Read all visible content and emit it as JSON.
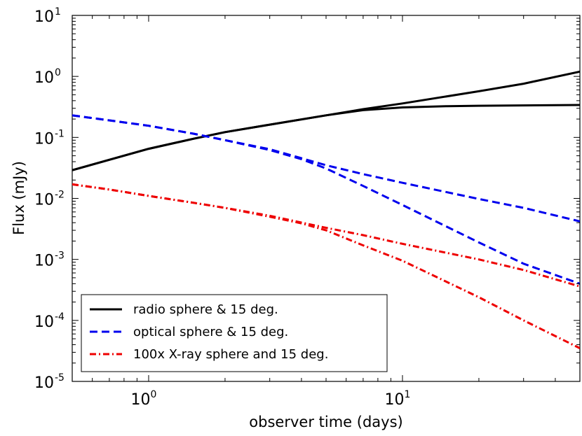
{
  "chart_data": {
    "type": "line",
    "xscale": "log",
    "yscale": "log",
    "xlabel": "observer time (days)",
    "ylabel": "Flux (mJy)",
    "xlim": [
      0.5,
      50
    ],
    "ylim": [
      1e-05,
      10
    ],
    "x_ticks": [
      {
        "value": 1,
        "base": "10",
        "exp": "0"
      },
      {
        "value": 10,
        "base": "10",
        "exp": "1"
      }
    ],
    "y_ticks": [
      {
        "value": 1e-05,
        "base": "10",
        "exp": "-5"
      },
      {
        "value": 0.0001,
        "base": "10",
        "exp": "-4"
      },
      {
        "value": 0.001,
        "base": "10",
        "exp": "-3"
      },
      {
        "value": 0.01,
        "base": "10",
        "exp": "-2"
      },
      {
        "value": 0.1,
        "base": "10",
        "exp": "-1"
      },
      {
        "value": 1,
        "base": "10",
        "exp": "0"
      },
      {
        "value": 10,
        "base": "10",
        "exp": "1"
      }
    ],
    "grid": false,
    "legend_position": "bottom-left",
    "legend": [
      {
        "label": "radio sphere & 15 deg.",
        "color": "#000000",
        "style": "solid"
      },
      {
        "label": "optical sphere & 15 deg.",
        "color": "#0000ee",
        "style": "dashed"
      },
      {
        "label": "100x X-ray sphere and 15 deg.",
        "color": "#ee0000",
        "style": "dashdot"
      }
    ],
    "series": [
      {
        "name": "radio sphere",
        "color": "#000000",
        "style": "solid",
        "x": [
          0.5,
          0.7,
          1,
          1.5,
          2,
          3,
          5,
          7,
          10,
          20,
          30,
          50
        ],
        "y": [
          0.029,
          0.043,
          0.065,
          0.095,
          0.122,
          0.162,
          0.23,
          0.29,
          0.36,
          0.57,
          0.76,
          1.2
        ]
      },
      {
        "name": "radio 15 deg.",
        "color": "#000000",
        "style": "solid",
        "x": [
          0.5,
          0.7,
          1,
          1.5,
          2,
          3,
          5,
          7,
          10,
          15,
          20,
          30,
          50
        ],
        "y": [
          0.029,
          0.043,
          0.065,
          0.095,
          0.122,
          0.162,
          0.23,
          0.28,
          0.31,
          0.325,
          0.33,
          0.335,
          0.34
        ]
      },
      {
        "name": "optical sphere",
        "color": "#0000ee",
        "style": "dashed",
        "x": [
          0.5,
          0.7,
          1,
          1.5,
          2,
          3,
          5,
          7,
          10,
          20,
          30,
          50
        ],
        "y": [
          0.23,
          0.19,
          0.155,
          0.115,
          0.09,
          0.064,
          0.035,
          0.025,
          0.018,
          0.0098,
          0.007,
          0.0042
        ]
      },
      {
        "name": "optical 15 deg.",
        "color": "#0000ee",
        "style": "dashed",
        "x": [
          0.5,
          0.7,
          1,
          1.5,
          2,
          3,
          4,
          5,
          7,
          10,
          20,
          30,
          50
        ],
        "y": [
          0.23,
          0.19,
          0.155,
          0.115,
          0.09,
          0.062,
          0.044,
          0.031,
          0.016,
          0.0078,
          0.0019,
          0.00085,
          0.0004
        ]
      },
      {
        "name": "100x X-ray sphere",
        "color": "#ee0000",
        "style": "dashdot",
        "x": [
          0.5,
          0.7,
          1,
          1.5,
          2,
          3,
          5,
          7,
          10,
          20,
          30,
          50
        ],
        "y": [
          0.017,
          0.014,
          0.011,
          0.0085,
          0.007,
          0.0052,
          0.0033,
          0.0025,
          0.0018,
          0.001,
          0.00067,
          0.00036
        ]
      },
      {
        "name": "100x X-ray 15 deg.",
        "color": "#ee0000",
        "style": "dashdot",
        "x": [
          0.5,
          0.7,
          1,
          1.5,
          2,
          3,
          4,
          5,
          7,
          10,
          20,
          30,
          50
        ],
        "y": [
          0.017,
          0.014,
          0.011,
          0.0085,
          0.007,
          0.005,
          0.0039,
          0.003,
          0.0017,
          0.00095,
          0.00024,
          0.0001,
          3.5e-05
        ]
      }
    ]
  }
}
